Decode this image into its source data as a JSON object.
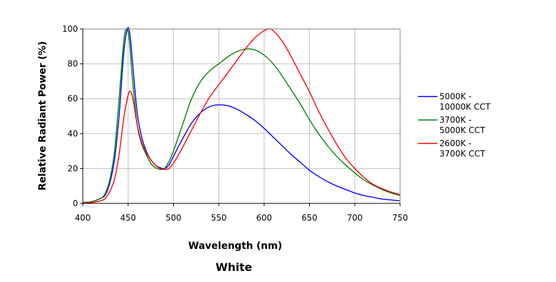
{
  "chart_data": {
    "type": "line",
    "title": "White",
    "xlabel": "Wavelength (nm)",
    "ylabel": "Relative Radiant Power (%)",
    "xlim": [
      400,
      750
    ],
    "ylim": [
      0,
      100
    ],
    "xticks": [
      400,
      450,
      500,
      550,
      600,
      650,
      700,
      750
    ],
    "yticks": [
      0,
      20,
      40,
      60,
      80,
      100
    ],
    "grid": true,
    "legend_position": "right",
    "series": [
      {
        "name_line1": "5000K -",
        "name_line2": "10000K CCT",
        "color": "#0000ff",
        "x": [
          400,
          410,
          420,
          425,
          430,
          435,
          440,
          445,
          449,
          452,
          455,
          460,
          465,
          470,
          475,
          480,
          485,
          490,
          495,
          500,
          510,
          520,
          530,
          540,
          550,
          560,
          570,
          580,
          590,
          600,
          610,
          620,
          630,
          640,
          650,
          660,
          670,
          680,
          690,
          700,
          710,
          720,
          730,
          740,
          750
        ],
        "y": [
          0.5,
          1,
          3,
          5,
          12,
          25,
          50,
          85,
          100,
          97,
          80,
          52,
          38,
          30,
          25,
          22,
          20.5,
          20,
          22,
          27,
          37,
          46,
          52,
          55.5,
          56.5,
          56,
          54,
          51,
          47.5,
          43,
          38,
          33,
          28,
          23.5,
          19,
          15.5,
          12.5,
          10,
          8,
          6,
          4.5,
          3.5,
          2.5,
          2,
          1.5
        ]
      },
      {
        "name_line1": "3700K -",
        "name_line2": "5000K CCT",
        "color": "#008000",
        "x": [
          400,
          410,
          420,
          425,
          430,
          435,
          440,
          445,
          448,
          451,
          455,
          460,
          465,
          470,
          475,
          480,
          485,
          490,
          495,
          500,
          510,
          520,
          530,
          540,
          550,
          560,
          570,
          580,
          590,
          600,
          610,
          620,
          630,
          640,
          650,
          660,
          670,
          680,
          690,
          700,
          710,
          720,
          730,
          740,
          750
        ],
        "y": [
          0.5,
          1,
          3,
          6,
          14,
          30,
          60,
          92,
          100,
          95,
          70,
          45,
          34,
          28,
          23,
          20.5,
          19.5,
          20,
          24,
          30,
          45,
          60,
          70,
          76,
          80,
          84,
          87,
          88.5,
          88,
          85,
          80,
          73,
          65,
          57,
          48,
          40,
          33,
          27,
          22,
          17.5,
          13.5,
          10.5,
          8,
          6,
          4.5
        ]
      },
      {
        "name_line1": "2600K -",
        "name_line2": "3700K CCT",
        "color": "#ff0000",
        "x": [
          400,
          410,
          420,
          425,
          430,
          435,
          440,
          445,
          450,
          453,
          456,
          460,
          465,
          470,
          475,
          480,
          485,
          490,
          495,
          500,
          510,
          520,
          530,
          540,
          550,
          560,
          570,
          580,
          590,
          600,
          605,
          610,
          620,
          630,
          640,
          650,
          660,
          670,
          680,
          690,
          700,
          710,
          720,
          730,
          740,
          750
        ],
        "y": [
          0.3,
          0.5,
          1.5,
          3,
          7,
          14,
          28,
          48,
          62,
          64,
          58,
          45,
          35,
          29,
          25,
          22,
          20,
          19.5,
          20,
          23,
          32,
          42,
          52,
          61,
          68,
          75,
          82,
          89,
          95,
          99,
          100,
          99,
          93,
          84,
          74,
          64,
          53,
          43,
          34,
          26,
          20,
          15,
          11,
          8.5,
          6.5,
          5
        ]
      }
    ]
  }
}
